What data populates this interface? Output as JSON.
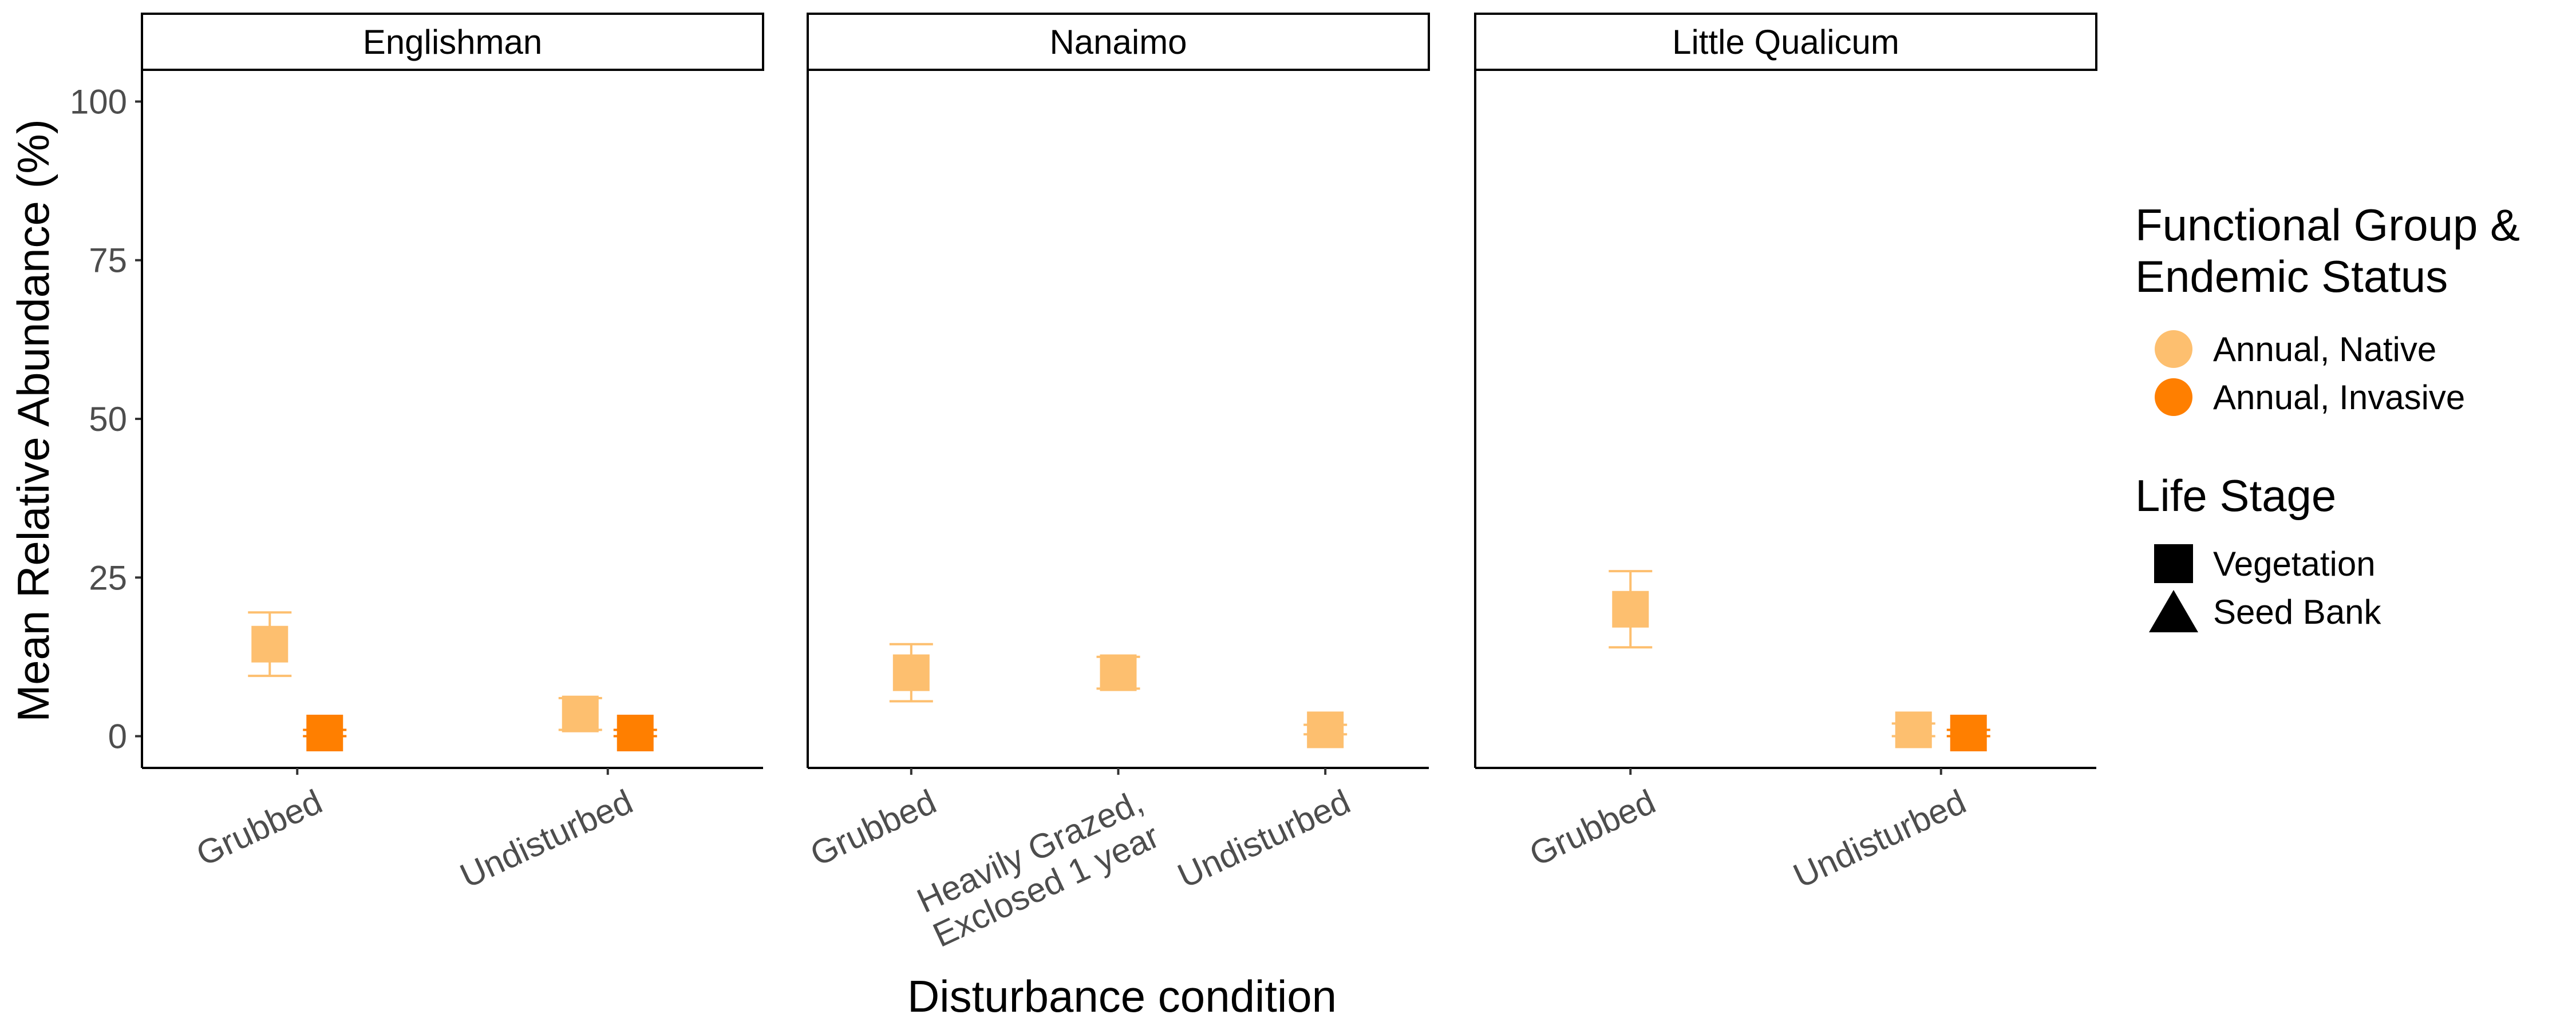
{
  "chart_data": {
    "type": "scatter",
    "xlabel": "Disturbance condition",
    "ylabel": "Mean Relative Abundance (%)",
    "ylim": [
      -5,
      105
    ],
    "yticks": [
      0,
      25,
      50,
      75,
      100
    ],
    "grid": false,
    "legend_position": "right",
    "facets": [
      {
        "name": "Englishman",
        "categories": [
          "Grubbed",
          "Undisturbed"
        ],
        "points": [
          {
            "category": "Grubbed",
            "group": "Annual, Native",
            "stage": "Vegetation",
            "y": 14.5,
            "ymin": 9.5,
            "ymax": 19.5
          },
          {
            "category": "Grubbed",
            "group": "Annual, Invasive",
            "stage": "Vegetation",
            "y": 0.5,
            "ymin": 0,
            "ymax": 1
          },
          {
            "category": "Undisturbed",
            "group": "Annual, Native",
            "stage": "Vegetation",
            "y": 3.5,
            "ymin": 1,
            "ymax": 6
          },
          {
            "category": "Undisturbed",
            "group": "Annual, Invasive",
            "stage": "Vegetation",
            "y": 0.5,
            "ymin": 0,
            "ymax": 1
          }
        ]
      },
      {
        "name": "Nanaimo",
        "categories": [
          "Grubbed",
          "Heavily Grazed,\nExclosed 1 year",
          "Undisturbed"
        ],
        "points": [
          {
            "category": "Grubbed",
            "group": "Annual, Native",
            "stage": "Vegetation",
            "y": 10,
            "ymin": 5.5,
            "ymax": 14.5
          },
          {
            "category": "Heavily Grazed,\nExclosed 1 year",
            "group": "Annual, Native",
            "stage": "Vegetation",
            "y": 10,
            "ymin": 7.5,
            "ymax": 12.5
          },
          {
            "category": "Undisturbed",
            "group": "Annual, Native",
            "stage": "Vegetation",
            "y": 1,
            "ymin": 0.3,
            "ymax": 1.8
          }
        ]
      },
      {
        "name": "Little Qualicum",
        "categories": [
          "Grubbed",
          "Undisturbed"
        ],
        "points": [
          {
            "category": "Grubbed",
            "group": "Annual, Native",
            "stage": "Vegetation",
            "y": 20,
            "ymin": 14,
            "ymax": 26
          },
          {
            "category": "Undisturbed",
            "group": "Annual, Native",
            "stage": "Vegetation",
            "y": 1,
            "ymin": 0,
            "ymax": 2
          },
          {
            "category": "Undisturbed",
            "group": "Annual, Invasive",
            "stage": "Vegetation",
            "y": 0.5,
            "ymin": 0,
            "ymax": 1
          }
        ]
      }
    ],
    "legend": {
      "color_title_line1": "Functional Group &",
      "color_title_line2": "Endemic Status",
      "color_items": [
        {
          "label": "Annual, Native",
          "color": "#fdbf6f"
        },
        {
          "label": "Annual, Invasive",
          "color": "#ff7f00"
        }
      ],
      "shape_title": "Life Stage",
      "shape_items": [
        {
          "label": "Vegetation",
          "shape": "square"
        },
        {
          "label": "Seed Bank",
          "shape": "triangle"
        }
      ]
    }
  }
}
